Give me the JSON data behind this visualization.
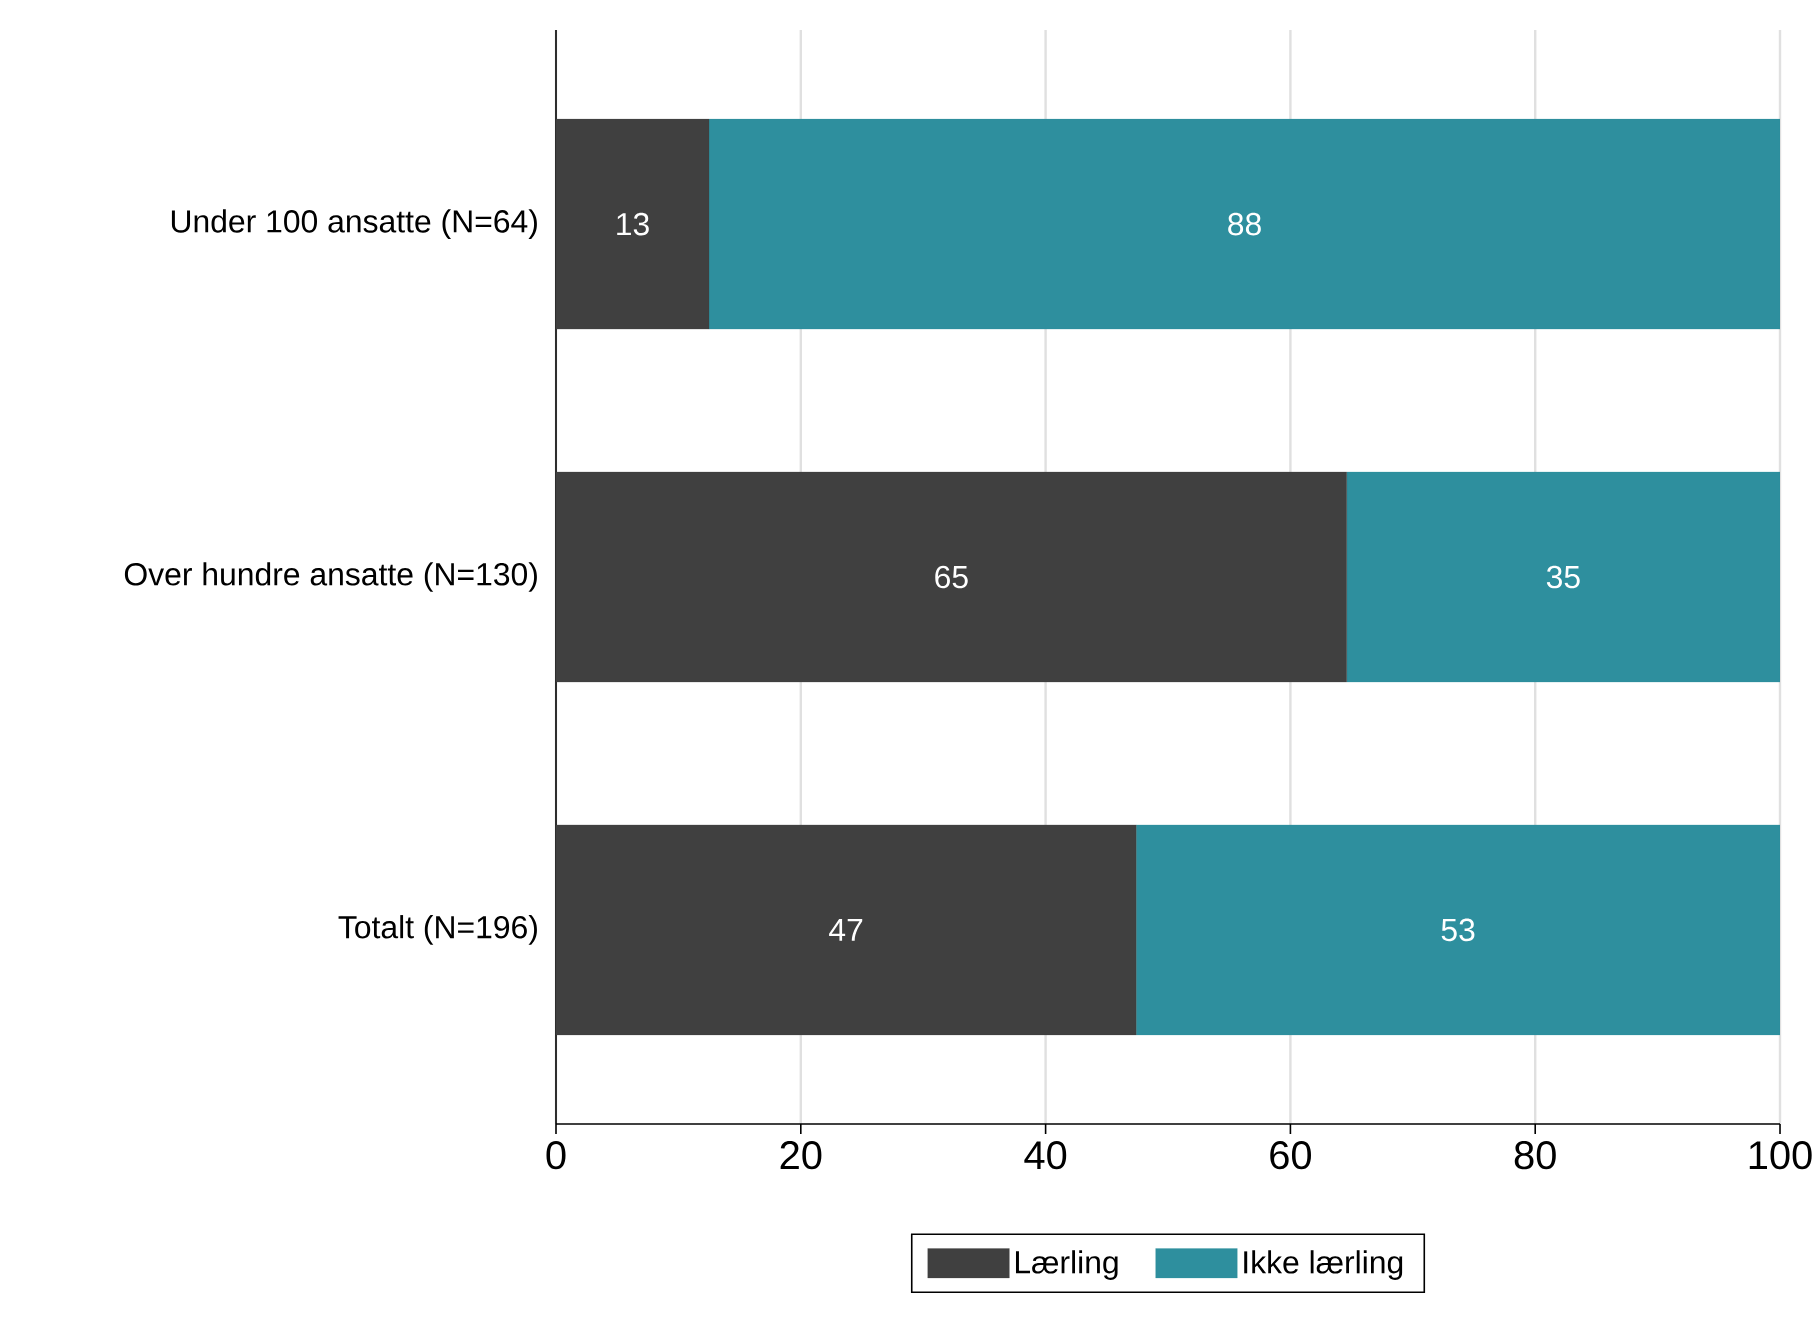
{
  "chart_data": {
    "type": "bar",
    "orientation": "horizontal",
    "stacked": true,
    "categories": [
      "Under 100 ansatte (N=64)",
      "Over hundre ansatte (N=130)",
      "Totalt (N=196)"
    ],
    "series": [
      {
        "name": "Lærling",
        "color": "#404040",
        "values": [
          12.5,
          64.6,
          47.4
        ],
        "value_labels": [
          "13",
          "65",
          "47"
        ]
      },
      {
        "name": "Ikke lærling",
        "color": "#2e8f9e",
        "values": [
          87.5,
          35.4,
          52.6
        ],
        "value_labels": [
          "88",
          "35",
          "53"
        ]
      }
    ],
    "xlim": [
      0,
      100
    ],
    "xticks": [
      0,
      20,
      40,
      60,
      80,
      100
    ],
    "grid": "x",
    "legend": "bottom"
  }
}
